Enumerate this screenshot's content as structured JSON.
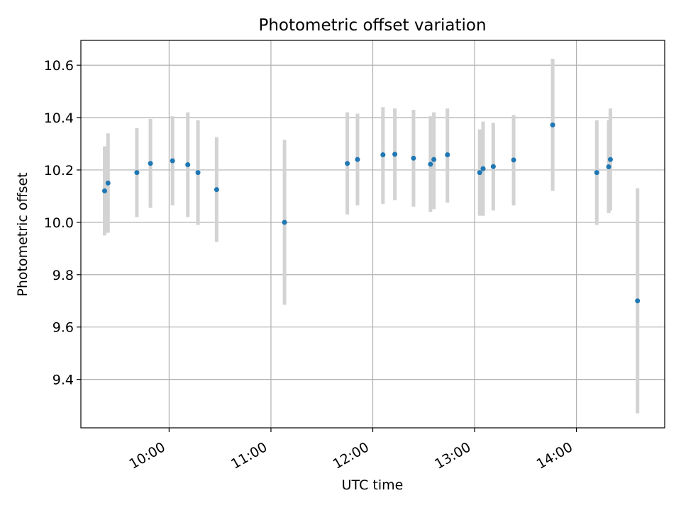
{
  "chart_data": {
    "type": "scatter",
    "title": "Photometric offset variation",
    "xlabel": "UTC time",
    "ylabel": "Photometric offset",
    "x_unit": "UTC time (HH:MM)",
    "xlim": [
      "09:08",
      "14:52"
    ],
    "ylim": [
      9.215,
      10.695
    ],
    "x_ticks": [
      "10:00",
      "11:00",
      "12:00",
      "13:00",
      "14:00"
    ],
    "y_ticks": [
      9.4,
      9.6,
      9.8,
      10.0,
      10.2,
      10.4,
      10.6
    ],
    "grid": true,
    "marker_color": "#1f77b4",
    "errorbar_color": "#d3d3d3",
    "points": [
      {
        "x": "09:22",
        "y": 10.12,
        "ylow": 9.95,
        "yhigh": 10.29
      },
      {
        "x": "09:24",
        "y": 10.15,
        "ylow": 9.96,
        "yhigh": 10.34
      },
      {
        "x": "09:41",
        "y": 10.19,
        "ylow": 10.02,
        "yhigh": 10.36
      },
      {
        "x": "09:49",
        "y": 10.225,
        "ylow": 10.055,
        "yhigh": 10.395
      },
      {
        "x": "10:02",
        "y": 10.235,
        "ylow": 10.065,
        "yhigh": 10.405
      },
      {
        "x": "10:11",
        "y": 10.22,
        "ylow": 10.02,
        "yhigh": 10.42
      },
      {
        "x": "10:17",
        "y": 10.19,
        "ylow": 9.99,
        "yhigh": 10.39
      },
      {
        "x": "10:28",
        "y": 10.125,
        "ylow": 9.925,
        "yhigh": 10.325
      },
      {
        "x": "11:08",
        "y": 10.0,
        "ylow": 9.685,
        "yhigh": 10.315
      },
      {
        "x": "11:45",
        "y": 10.225,
        "ylow": 10.03,
        "yhigh": 10.42
      },
      {
        "x": "11:51",
        "y": 10.24,
        "ylow": 10.065,
        "yhigh": 10.415
      },
      {
        "x": "12:06",
        "y": 10.258,
        "ylow": 10.07,
        "yhigh": 10.44
      },
      {
        "x": "12:13",
        "y": 10.26,
        "ylow": 10.085,
        "yhigh": 10.435
      },
      {
        "x": "12:24",
        "y": 10.245,
        "ylow": 10.06,
        "yhigh": 10.43
      },
      {
        "x": "12:34",
        "y": 10.222,
        "ylow": 10.04,
        "yhigh": 10.405
      },
      {
        "x": "12:36",
        "y": 10.24,
        "ylow": 10.05,
        "yhigh": 10.42
      },
      {
        "x": "12:44",
        "y": 10.258,
        "ylow": 10.075,
        "yhigh": 10.435
      },
      {
        "x": "13:03",
        "y": 10.19,
        "ylow": 10.025,
        "yhigh": 10.355
      },
      {
        "x": "13:05",
        "y": 10.205,
        "ylow": 10.025,
        "yhigh": 10.385
      },
      {
        "x": "13:11",
        "y": 10.213,
        "ylow": 10.045,
        "yhigh": 10.38
      },
      {
        "x": "13:23",
        "y": 10.238,
        "ylow": 10.065,
        "yhigh": 10.41
      },
      {
        "x": "13:46",
        "y": 10.372,
        "ylow": 10.12,
        "yhigh": 10.625
      },
      {
        "x": "14:12",
        "y": 10.19,
        "ylow": 9.99,
        "yhigh": 10.39
      },
      {
        "x": "14:19",
        "y": 10.212,
        "ylow": 10.035,
        "yhigh": 10.39
      },
      {
        "x": "14:20",
        "y": 10.24,
        "ylow": 10.045,
        "yhigh": 10.435
      },
      {
        "x": "14:36",
        "y": 9.7,
        "ylow": 9.27,
        "yhigh": 10.13
      }
    ]
  }
}
